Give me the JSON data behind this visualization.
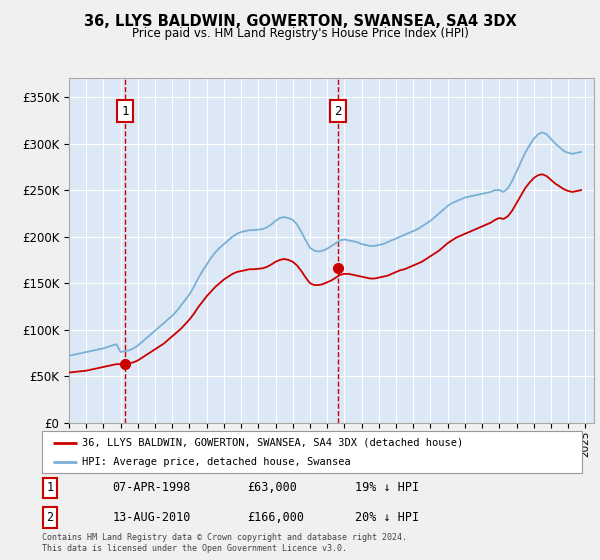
{
  "title": "36, LLYS BALDWIN, GOWERTON, SWANSEA, SA4 3DX",
  "subtitle": "Price paid vs. HM Land Registry's House Price Index (HPI)",
  "xlim_start": 1995.0,
  "xlim_end": 2025.5,
  "ylim_bottom": 0,
  "ylim_top": 370000,
  "yticks": [
    0,
    50000,
    100000,
    150000,
    200000,
    250000,
    300000,
    350000
  ],
  "ytick_labels": [
    "£0",
    "£50K",
    "£100K",
    "£150K",
    "£200K",
    "£250K",
    "£300K",
    "£350K"
  ],
  "outer_bg_color": "#f0f0f0",
  "plot_bg_color": "#dce8f5",
  "grid_color": "#ffffff",
  "hpi_color": "#7bafd4",
  "price_color": "#cc0000",
  "sale1_date": 1998.27,
  "sale1_price": 63000,
  "sale2_date": 2010.62,
  "sale2_price": 166000,
  "legend_label_price": "36, LLYS BALDWIN, GOWERTON, SWANSEA, SA4 3DX (detached house)",
  "legend_label_hpi": "HPI: Average price, detached house, Swansea",
  "annotation1_label": "1",
  "annotation2_label": "2",
  "table_row1": [
    "1",
    "07-APR-1998",
    "£63,000",
    "19% ↓ HPI"
  ],
  "table_row2": [
    "2",
    "13-AUG-2010",
    "£166,000",
    "20% ↓ HPI"
  ],
  "footnote": "Contains HM Land Registry data © Crown copyright and database right 2024.\nThis data is licensed under the Open Government Licence v3.0.",
  "xticks": [
    1995,
    1996,
    1997,
    1998,
    1999,
    2000,
    2001,
    2002,
    2003,
    2004,
    2005,
    2006,
    2007,
    2008,
    2009,
    2010,
    2011,
    2012,
    2013,
    2014,
    2015,
    2016,
    2017,
    2018,
    2019,
    2020,
    2021,
    2022,
    2023,
    2024,
    2025
  ],
  "hpi_years": [
    1995.0,
    1995.25,
    1995.5,
    1995.75,
    1996.0,
    1996.25,
    1996.5,
    1996.75,
    1997.0,
    1997.25,
    1997.5,
    1997.75,
    1998.0,
    1998.25,
    1998.5,
    1998.75,
    1999.0,
    1999.25,
    1999.5,
    1999.75,
    2000.0,
    2000.25,
    2000.5,
    2000.75,
    2001.0,
    2001.25,
    2001.5,
    2001.75,
    2002.0,
    2002.25,
    2002.5,
    2002.75,
    2003.0,
    2003.25,
    2003.5,
    2003.75,
    2004.0,
    2004.25,
    2004.5,
    2004.75,
    2005.0,
    2005.25,
    2005.5,
    2005.75,
    2006.0,
    2006.25,
    2006.5,
    2006.75,
    2007.0,
    2007.25,
    2007.5,
    2007.75,
    2008.0,
    2008.25,
    2008.5,
    2008.75,
    2009.0,
    2009.25,
    2009.5,
    2009.75,
    2010.0,
    2010.25,
    2010.5,
    2010.75,
    2011.0,
    2011.25,
    2011.5,
    2011.75,
    2012.0,
    2012.25,
    2012.5,
    2012.75,
    2013.0,
    2013.25,
    2013.5,
    2013.75,
    2014.0,
    2014.25,
    2014.5,
    2014.75,
    2015.0,
    2015.25,
    2015.5,
    2015.75,
    2016.0,
    2016.25,
    2016.5,
    2016.75,
    2017.0,
    2017.25,
    2017.5,
    2017.75,
    2018.0,
    2018.25,
    2018.5,
    2018.75,
    2019.0,
    2019.25,
    2019.5,
    2019.75,
    2020.0,
    2020.25,
    2020.5,
    2020.75,
    2021.0,
    2021.25,
    2021.5,
    2021.75,
    2022.0,
    2022.25,
    2022.5,
    2022.75,
    2023.0,
    2023.25,
    2023.5,
    2023.75,
    2024.0,
    2024.25,
    2024.5,
    2024.75
  ],
  "hpi_values": [
    72000,
    73000,
    74000,
    75000,
    76000,
    77000,
    78000,
    79000,
    80000,
    81500,
    83000,
    84500,
    76000,
    77000,
    78000,
    80000,
    83000,
    87000,
    91000,
    95000,
    99000,
    103000,
    107000,
    111000,
    115000,
    120000,
    126000,
    132000,
    138000,
    146000,
    155000,
    163000,
    170000,
    177000,
    183000,
    188000,
    192000,
    196000,
    200000,
    203000,
    205000,
    206000,
    207000,
    207000,
    207500,
    208000,
    210000,
    213000,
    217000,
    220000,
    221000,
    220000,
    218000,
    213000,
    205000,
    196000,
    188000,
    185000,
    184000,
    185000,
    187000,
    190000,
    193000,
    196000,
    197000,
    196000,
    195000,
    194000,
    192000,
    191000,
    190000,
    190000,
    191000,
    192000,
    194000,
    196000,
    198000,
    200000,
    202000,
    204000,
    206000,
    208000,
    211000,
    214000,
    217000,
    221000,
    225000,
    229000,
    233000,
    236000,
    238000,
    240000,
    242000,
    243000,
    244000,
    245000,
    246000,
    247000,
    248000,
    250000,
    250000,
    248000,
    252000,
    260000,
    270000,
    280000,
    290000,
    298000,
    305000,
    310000,
    312000,
    310000,
    305000,
    300000,
    296000,
    292000,
    290000,
    289000,
    290000,
    291000
  ],
  "price_values": [
    54000,
    54500,
    55000,
    55500,
    56000,
    57000,
    58000,
    59000,
    60000,
    61000,
    62000,
    63000,
    63000,
    63000,
    64000,
    65000,
    67000,
    70000,
    73000,
    76000,
    79000,
    82000,
    85000,
    89000,
    93000,
    97000,
    101000,
    106000,
    111000,
    117000,
    124000,
    130000,
    136000,
    141000,
    146000,
    150000,
    154000,
    157000,
    160000,
    162000,
    163000,
    164000,
    165000,
    165000,
    165500,
    166000,
    167500,
    170000,
    173000,
    175000,
    176000,
    175000,
    173000,
    169000,
    163000,
    156000,
    150000,
    148000,
    148000,
    149000,
    151000,
    153000,
    156000,
    159000,
    160000,
    160000,
    159000,
    158000,
    157000,
    156000,
    155000,
    155000,
    156000,
    157000,
    158000,
    160000,
    162000,
    164000,
    165000,
    167000,
    169000,
    171000,
    173000,
    176000,
    179000,
    182000,
    185000,
    189000,
    193000,
    196000,
    199000,
    201000,
    203000,
    205000,
    207000,
    209000,
    211000,
    213000,
    215000,
    218000,
    220000,
    219000,
    222000,
    228000,
    236000,
    244000,
    252000,
    258000,
    263000,
    266000,
    267000,
    265000,
    261000,
    257000,
    254000,
    251000,
    249000,
    248000,
    249000,
    250000
  ]
}
